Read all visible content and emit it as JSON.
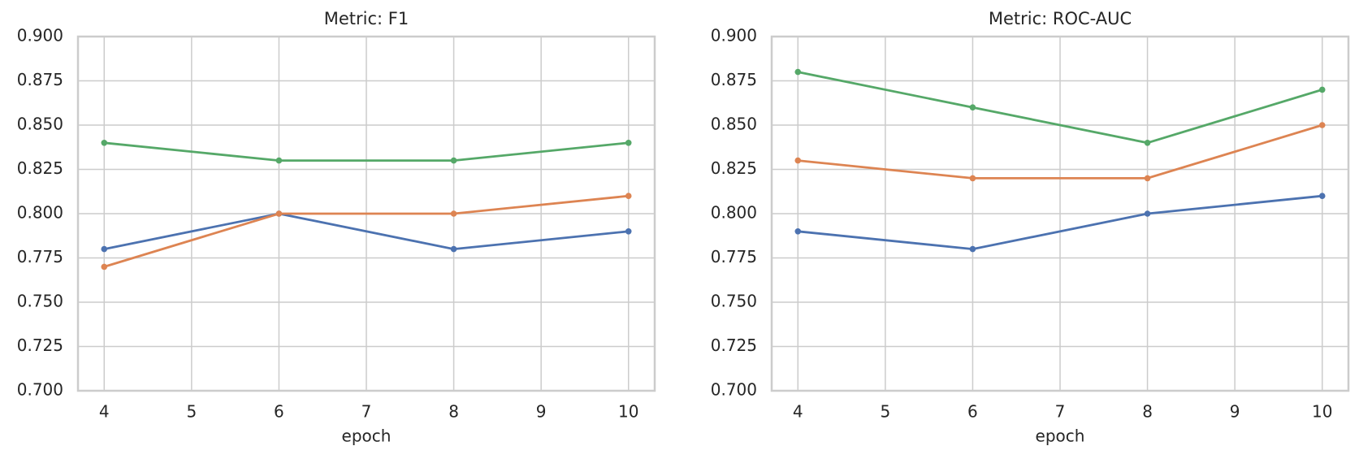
{
  "chart_data": [
    {
      "type": "line",
      "title": "Metric: F1",
      "x_label": "epoch",
      "x": [
        4,
        6,
        8,
        10
      ],
      "series": [
        {
          "color": "#4c72b0",
          "values": [
            0.78,
            0.8,
            0.78,
            0.79
          ]
        },
        {
          "color": "#dd8452",
          "values": [
            0.77,
            0.8,
            0.8,
            0.81
          ]
        },
        {
          "color": "#55a868",
          "values": [
            0.84,
            0.83,
            0.83,
            0.84
          ]
        }
      ],
      "xlim": [
        3.7,
        10.3
      ],
      "xticks": [
        4,
        5,
        6,
        7,
        8,
        9,
        10
      ],
      "ylim": [
        0.7,
        0.9
      ],
      "yticks": [
        {
          "value": 0.7,
          "label": "0.700"
        },
        {
          "value": 0.725,
          "label": "0.725"
        },
        {
          "value": 0.75,
          "label": "0.750"
        },
        {
          "value": 0.775,
          "label": "0.775"
        },
        {
          "value": 0.8,
          "label": "0.800"
        },
        {
          "value": 0.825,
          "label": "0.825"
        },
        {
          "value": 0.85,
          "label": "0.850"
        },
        {
          "value": 0.875,
          "label": "0.875"
        },
        {
          "value": 0.9,
          "label": "0.900"
        }
      ],
      "grid": true
    },
    {
      "type": "line",
      "title": "Metric: ROC-AUC",
      "x_label": "epoch",
      "x": [
        4,
        6,
        8,
        10
      ],
      "series": [
        {
          "color": "#4c72b0",
          "values": [
            0.79,
            0.78,
            0.8,
            0.81
          ]
        },
        {
          "color": "#dd8452",
          "values": [
            0.83,
            0.82,
            0.82,
            0.85
          ]
        },
        {
          "color": "#55a868",
          "values": [
            0.88,
            0.86,
            0.84,
            0.87
          ]
        }
      ],
      "xlim": [
        3.7,
        10.3
      ],
      "xticks": [
        4,
        5,
        6,
        7,
        8,
        9,
        10
      ],
      "ylim": [
        0.7,
        0.9
      ],
      "yticks": [
        {
          "value": 0.7,
          "label": "0.700"
        },
        {
          "value": 0.725,
          "label": "0.725"
        },
        {
          "value": 0.75,
          "label": "0.750"
        },
        {
          "value": 0.775,
          "label": "0.775"
        },
        {
          "value": 0.8,
          "label": "0.800"
        },
        {
          "value": 0.825,
          "label": "0.825"
        },
        {
          "value": 0.85,
          "label": "0.850"
        },
        {
          "value": 0.875,
          "label": "0.875"
        },
        {
          "value": 0.9,
          "label": "0.900"
        }
      ],
      "grid": true
    }
  ]
}
